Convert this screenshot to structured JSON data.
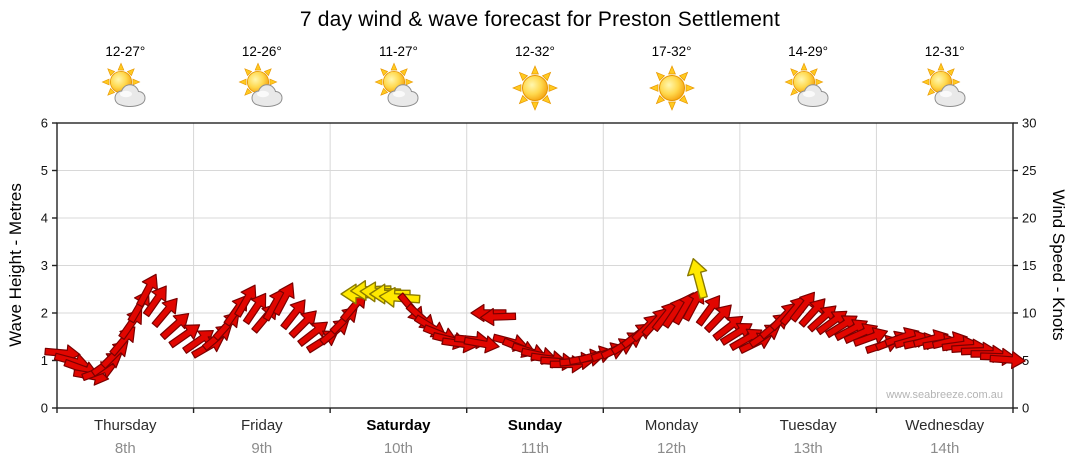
{
  "title": "7 day wind & wave forecast for Preston Settlement",
  "watermark": "www.seabreeze.com.au",
  "days": [
    {
      "temp": "12-27°",
      "icon": "sun-cloud",
      "name": "Thursday",
      "date": "8th",
      "weekend": false
    },
    {
      "temp": "12-26°",
      "icon": "sun-cloud",
      "name": "Friday",
      "date": "9th",
      "weekend": false
    },
    {
      "temp": "11-27°",
      "icon": "sun-cloud",
      "name": "Saturday",
      "date": "10th",
      "weekend": true
    },
    {
      "temp": "12-32°",
      "icon": "sun",
      "name": "Sunday",
      "date": "11th",
      "weekend": true
    },
    {
      "temp": "17-32°",
      "icon": "sun",
      "name": "Monday",
      "date": "12th",
      "weekend": false
    },
    {
      "temp": "14-29°",
      "icon": "sun-cloud",
      "name": "Tuesday",
      "date": "13th",
      "weekend": false
    },
    {
      "temp": "12-31°",
      "icon": "sun-cloud",
      "name": "Wednesday",
      "date": "14th",
      "weekend": false
    }
  ],
  "axes": {
    "left_label": "Wave Height - Metres",
    "right_label": "Wind Speed - Knots",
    "left_ticks": [
      0,
      1,
      2,
      3,
      4,
      5,
      6
    ],
    "right_ticks": [
      0,
      5,
      10,
      15,
      20,
      25,
      30
    ]
  },
  "chart_data": {
    "type": "scatter",
    "title": "7 day wind & wave forecast for Preston Settlement",
    "categories": [
      "Thursday 8th",
      "Friday 9th",
      "Saturday 10th",
      "Sunday 11th",
      "Monday 12th",
      "Tuesday 13th",
      "Wednesday 14th"
    ],
    "description": "Wind arrows plotted against the Wind Speed (knots) right axis; left axis shows equivalent Wave Height in metres (metres = knots / 5). Each arrow = [x in days 0-7 across Thu-Wed, wind speed knots, compass direction arrow points toward (0=N,90=E,180=S,270=W), optional 'y' = yellow strong-wind arrow, default red].",
    "x_range": [
      0,
      7
    ],
    "left_axis": {
      "label": "Wave Height - Metres",
      "min": 0,
      "max": 6
    },
    "right_axis": {
      "label": "Wind Speed - Knots",
      "min": 0,
      "max": 30
    },
    "grid": true,
    "colors": {
      "red": "#e10600",
      "red_outline": "#7a0000",
      "yellow": "#ffe800",
      "yellow_outline": "#8a7a00",
      "grid": "#d8d8d8",
      "frame": "#222222"
    },
    "arrows": [
      [
        0.03,
        5.8,
        95
      ],
      [
        0.1,
        5.0,
        105
      ],
      [
        0.17,
        4.2,
        110
      ],
      [
        0.24,
        3.4,
        100
      ],
      [
        0.3,
        3.8,
        70
      ],
      [
        0.36,
        4.6,
        55
      ],
      [
        0.42,
        5.6,
        45
      ],
      [
        0.48,
        7.0,
        40
      ],
      [
        0.54,
        8.8,
        35
      ],
      [
        0.6,
        10.6,
        30
      ],
      [
        0.66,
        12.3,
        28
      ],
      [
        0.72,
        11.2,
        35
      ],
      [
        0.79,
        10.0,
        40
      ],
      [
        0.86,
        8.6,
        48
      ],
      [
        0.93,
        7.6,
        55
      ],
      [
        1.03,
        7.0,
        55
      ],
      [
        1.1,
        6.4,
        60
      ],
      [
        1.17,
        7.4,
        50
      ],
      [
        1.24,
        8.6,
        42
      ],
      [
        1.31,
        10.2,
        35
      ],
      [
        1.38,
        11.2,
        30
      ],
      [
        1.45,
        10.4,
        34
      ],
      [
        1.52,
        9.4,
        40
      ],
      [
        1.59,
        10.8,
        30
      ],
      [
        1.66,
        11.4,
        28
      ],
      [
        1.73,
        9.8,
        38
      ],
      [
        1.8,
        8.8,
        45
      ],
      [
        1.87,
        7.8,
        52
      ],
      [
        1.94,
        7.0,
        58
      ],
      [
        2.03,
        8.0,
        50
      ],
      [
        2.1,
        9.2,
        45
      ],
      [
        2.17,
        10.6,
        40
      ],
      [
        2.24,
        12.0,
        270,
        "y"
      ],
      [
        2.31,
        12.4,
        268,
        "y"
      ],
      [
        2.38,
        12.2,
        272,
        "y"
      ],
      [
        2.45,
        12.0,
        270,
        "y"
      ],
      [
        2.52,
        11.6,
        274,
        "y"
      ],
      [
        2.59,
        10.6,
        140
      ],
      [
        2.66,
        9.6,
        132
      ],
      [
        2.73,
        8.6,
        122
      ],
      [
        2.8,
        7.8,
        112
      ],
      [
        2.87,
        7.2,
        104
      ],
      [
        2.94,
        6.8,
        98
      ],
      [
        3.03,
        7.2,
        95
      ],
      [
        3.1,
        6.8,
        100
      ],
      [
        3.17,
        10.0,
        270
      ],
      [
        3.24,
        9.6,
        268
      ],
      [
        3.31,
        7.0,
        105
      ],
      [
        3.38,
        6.4,
        112
      ],
      [
        3.45,
        6.0,
        108
      ],
      [
        3.52,
        5.6,
        102
      ],
      [
        3.59,
        5.2,
        98
      ],
      [
        3.66,
        4.9,
        94
      ],
      [
        3.73,
        4.6,
        90
      ],
      [
        3.8,
        4.9,
        85
      ],
      [
        3.87,
        5.2,
        80
      ],
      [
        3.94,
        5.5,
        75
      ],
      [
        4.03,
        5.8,
        70
      ],
      [
        4.1,
        6.2,
        64
      ],
      [
        4.17,
        6.8,
        58
      ],
      [
        4.24,
        7.6,
        52
      ],
      [
        4.31,
        8.4,
        46
      ],
      [
        4.38,
        9.0,
        42
      ],
      [
        4.45,
        9.6,
        38
      ],
      [
        4.52,
        10.0,
        34
      ],
      [
        4.59,
        10.4,
        30
      ],
      [
        4.66,
        10.8,
        28
      ],
      [
        4.7,
        13.5,
        345,
        "y"
      ],
      [
        4.77,
        10.2,
        36
      ],
      [
        4.84,
        9.4,
        44
      ],
      [
        4.91,
        8.4,
        52
      ],
      [
        4.97,
        7.8,
        58
      ],
      [
        5.04,
        7.2,
        60
      ],
      [
        5.11,
        6.8,
        64
      ],
      [
        5.18,
        7.6,
        56
      ],
      [
        5.25,
        8.6,
        50
      ],
      [
        5.32,
        9.6,
        44
      ],
      [
        5.39,
        10.2,
        40
      ],
      [
        5.46,
        10.6,
        38
      ],
      [
        5.53,
        10.0,
        42
      ],
      [
        5.6,
        9.4,
        48
      ],
      [
        5.67,
        9.0,
        54
      ],
      [
        5.74,
        8.6,
        58
      ],
      [
        5.81,
        8.2,
        62
      ],
      [
        5.88,
        7.8,
        66
      ],
      [
        5.95,
        7.4,
        70
      ],
      [
        6.04,
        6.6,
        72
      ],
      [
        6.11,
        7.0,
        68
      ],
      [
        6.18,
        7.4,
        70
      ],
      [
        6.25,
        7.1,
        74
      ],
      [
        6.32,
        6.9,
        78
      ],
      [
        6.39,
        7.2,
        74
      ],
      [
        6.46,
        6.8,
        80
      ],
      [
        6.53,
        7.0,
        76
      ],
      [
        6.6,
        6.6,
        82
      ],
      [
        6.67,
        6.3,
        86
      ],
      [
        6.74,
        6.0,
        88
      ],
      [
        6.81,
        5.7,
        90
      ],
      [
        6.88,
        5.4,
        92
      ],
      [
        6.95,
        5.1,
        94
      ]
    ]
  }
}
